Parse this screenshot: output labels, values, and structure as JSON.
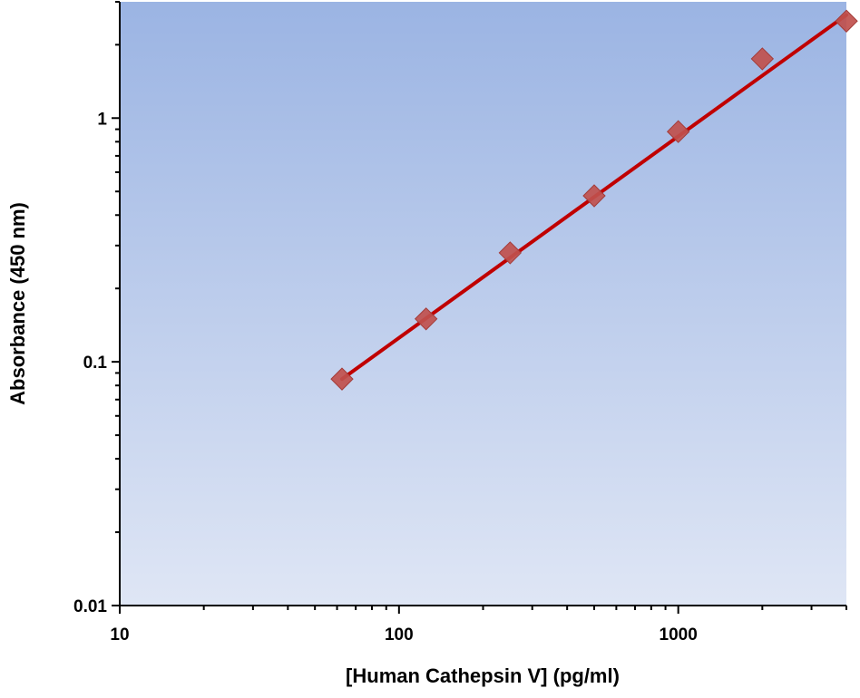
{
  "chart_data": {
    "type": "scatter",
    "title": "",
    "xlabel": "[Human Cathepsin V] (pg/ml)",
    "ylabel": "Absorbance (450 nm)",
    "x_scale": "log",
    "y_scale": "log",
    "xlim": [
      10,
      4000
    ],
    "ylim": [
      0.01,
      3
    ],
    "x_ticks": [
      10,
      100,
      1000
    ],
    "x_tick_labels": [
      "10",
      "100",
      "1000"
    ],
    "y_ticks": [
      0.01,
      0.1,
      1
    ],
    "y_tick_labels": [
      "0.01",
      "0.1",
      "1"
    ],
    "grid": false,
    "legend": "none",
    "series": [
      {
        "x": [
          62.5,
          125,
          250,
          500,
          1000,
          2000,
          4000
        ],
        "y": [
          0.085,
          0.15,
          0.28,
          0.48,
          0.88,
          1.75,
          2.5
        ],
        "marker": "diamond",
        "color": "#c0504d"
      }
    ],
    "fit_line": {
      "x": [
        62.5,
        4000
      ],
      "y": [
        0.085,
        2.65
      ],
      "color": "#c00000"
    },
    "colors": {
      "plot_bg_top": "#9bb4e3",
      "plot_bg_bottom": "#dfe6f5",
      "marker": "#c0504d",
      "line": "#c00000"
    }
  }
}
